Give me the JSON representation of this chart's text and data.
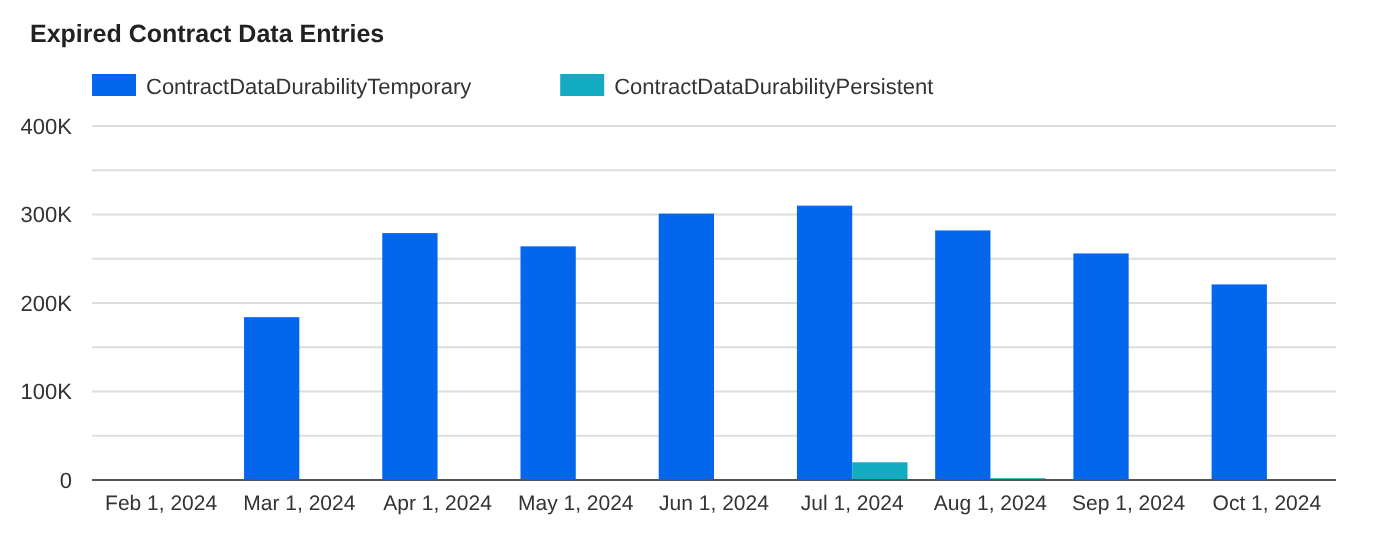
{
  "chart_data": {
    "type": "bar",
    "title": "Expired Contract Data Entries",
    "categories": [
      "Feb 1, 2024",
      "Mar 1, 2024",
      "Apr 1, 2024",
      "May 1, 2024",
      "Jun 1, 2024",
      "Jul 1, 2024",
      "Aug 1, 2024",
      "Sep 1, 2024",
      "Oct 1, 2024"
    ],
    "series": [
      {
        "name": "ContractDataDurabilityTemporary",
        "color": "#0367ee",
        "values": [
          0,
          184000,
          279000,
          264000,
          301000,
          310000,
          282000,
          256000,
          221000
        ]
      },
      {
        "name": "ContractDataDurabilityPersistent",
        "color": "#12abc1",
        "values": [
          1000,
          1000,
          0,
          0,
          0,
          20000,
          2000,
          1000,
          1000
        ]
      }
    ],
    "ylim": [
      0,
      400000
    ],
    "yticks": [
      0,
      {
        "value": 50000,
        "label": null
      },
      {
        "value": 100000,
        "label": "100K"
      },
      {
        "value": 150000,
        "label": null
      },
      {
        "value": 200000,
        "label": "200K"
      },
      {
        "value": 250000,
        "label": null
      },
      {
        "value": 300000,
        "label": "300K"
      },
      {
        "value": 350000,
        "label": null
      },
      {
        "value": 400000,
        "label": "400K"
      }
    ],
    "grid": "y",
    "legend": "top left"
  }
}
